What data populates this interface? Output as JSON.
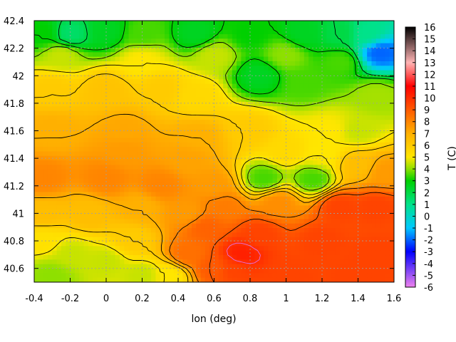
{
  "chart_data": {
    "type": "heatmap",
    "title": "",
    "xlabel": "lon (deg)",
    "ylabel": "",
    "colorbar_label": "T (C)",
    "xlim": [
      -0.4,
      1.6
    ],
    "ylim": [
      40.5,
      42.4
    ],
    "x_ticks": [
      "-0.4",
      "-0.2",
      "0",
      "0.2",
      "0.4",
      "0.6",
      "0.8",
      "1",
      "1.2",
      "1.4",
      "1.6"
    ],
    "y_ticks": [
      "40.6",
      "40.8",
      "41",
      "41.2",
      "41.4",
      "41.6",
      "41.8",
      "42",
      "42.2",
      "42.4"
    ],
    "colorbar_range": [
      -6,
      16
    ],
    "colorbar_ticks": [
      "-6",
      "-5",
      "-4",
      "-3",
      "-2",
      "-1",
      "0",
      "1",
      "2",
      "3",
      "4",
      "5",
      "6",
      "7",
      "8",
      "9",
      "10",
      "11",
      "12",
      "13",
      "14",
      "15",
      "16"
    ],
    "colormap": [
      {
        "v": -6,
        "c": "#ee82ee"
      },
      {
        "v": -3,
        "c": "#0000ff"
      },
      {
        "v": -1,
        "c": "#00c8ff"
      },
      {
        "v": 1,
        "c": "#00e28a"
      },
      {
        "v": 3,
        "c": "#00d000"
      },
      {
        "v": 4,
        "c": "#8ee000"
      },
      {
        "v": 5,
        "c": "#ffe600"
      },
      {
        "v": 7,
        "c": "#ffb000"
      },
      {
        "v": 9,
        "c": "#ff5a00"
      },
      {
        "v": 11,
        "c": "#ff0000"
      },
      {
        "v": 13,
        "c": "#ffb4b4"
      },
      {
        "v": 16,
        "c": "#000000"
      }
    ],
    "grid": true,
    "contour_lines": true,
    "field_anchors": [
      {
        "lon": -0.35,
        "lat": 42.3,
        "t": 3.0
      },
      {
        "lon": -0.2,
        "lat": 42.3,
        "t": 1.5
      },
      {
        "lon": 0.0,
        "lat": 42.32,
        "t": 2.5
      },
      {
        "lon": 0.2,
        "lat": 42.3,
        "t": 3.5
      },
      {
        "lon": 0.5,
        "lat": 42.3,
        "t": 2.5
      },
      {
        "lon": 0.8,
        "lat": 42.3,
        "t": 3.0
      },
      {
        "lon": 1.1,
        "lat": 42.3,
        "t": 2.5
      },
      {
        "lon": 1.3,
        "lat": 42.3,
        "t": 2.0
      },
      {
        "lon": 1.45,
        "lat": 42.3,
        "t": 1.0
      },
      {
        "lon": 1.52,
        "lat": 42.17,
        "t": -2.0
      },
      {
        "lon": -0.25,
        "lat": 42.15,
        "t": 4.5
      },
      {
        "lon": 0.2,
        "lat": 42.12,
        "t": 5.0
      },
      {
        "lon": 0.6,
        "lat": 42.15,
        "t": 4.5
      },
      {
        "lon": 1.0,
        "lat": 42.15,
        "t": 4.0
      },
      {
        "lon": 1.3,
        "lat": 42.1,
        "t": 3.5
      },
      {
        "lon": 0.85,
        "lat": 42.0,
        "t": 2.5
      },
      {
        "lon": 1.1,
        "lat": 41.95,
        "t": 3.5
      },
      {
        "lon": -0.3,
        "lat": 41.9,
        "t": 6.0
      },
      {
        "lon": 0.0,
        "lat": 41.9,
        "t": 6.3
      },
      {
        "lon": 0.3,
        "lat": 41.9,
        "t": 6.0
      },
      {
        "lon": 0.5,
        "lat": 41.85,
        "t": 5.5
      },
      {
        "lon": 1.5,
        "lat": 41.85,
        "t": 4.2
      },
      {
        "lon": 1.4,
        "lat": 41.6,
        "t": 4.5
      },
      {
        "lon": 1.25,
        "lat": 41.6,
        "t": 5.0
      },
      {
        "lon": -0.3,
        "lat": 41.6,
        "t": 7.0
      },
      {
        "lon": 0.1,
        "lat": 41.6,
        "t": 7.2
      },
      {
        "lon": 0.5,
        "lat": 41.55,
        "t": 7.0
      },
      {
        "lon": 0.8,
        "lat": 41.6,
        "t": 6.0
      },
      {
        "lon": 1.0,
        "lat": 41.45,
        "t": 5.5
      },
      {
        "lon": 0.1,
        "lat": 41.45,
        "t": 7.5
      },
      {
        "lon": 0.45,
        "lat": 41.4,
        "t": 7.3
      },
      {
        "lon": 1.2,
        "lat": 41.42,
        "t": 5.0
      },
      {
        "lon": 0.88,
        "lat": 41.25,
        "t": 3.5
      },
      {
        "lon": 1.15,
        "lat": 41.25,
        "t": 3.5
      },
      {
        "lon": 1.4,
        "lat": 41.35,
        "t": 6.5
      },
      {
        "lon": 1.55,
        "lat": 41.3,
        "t": 7.5
      },
      {
        "lon": -0.35,
        "lat": 41.25,
        "t": 8.0
      },
      {
        "lon": 0.0,
        "lat": 41.25,
        "t": 8.0
      },
      {
        "lon": 0.3,
        "lat": 41.2,
        "t": 8.0
      },
      {
        "lon": 0.6,
        "lat": 41.2,
        "t": 7.5
      },
      {
        "lon": -0.35,
        "lat": 41.0,
        "t": 6.5
      },
      {
        "lon": -0.1,
        "lat": 41.0,
        "t": 6.5
      },
      {
        "lon": 0.2,
        "lat": 41.05,
        "t": 7.0
      },
      {
        "lon": 0.45,
        "lat": 41.0,
        "t": 7.5
      },
      {
        "lon": 0.65,
        "lat": 41.05,
        "t": 8.2
      },
      {
        "lon": 0.95,
        "lat": 41.08,
        "t": 7.8
      },
      {
        "lon": 1.3,
        "lat": 41.05,
        "t": 9.5
      },
      {
        "lon": 1.5,
        "lat": 41.05,
        "t": 9.5
      },
      {
        "lon": 0.85,
        "lat": 40.85,
        "t": 9.5
      },
      {
        "lon": 1.2,
        "lat": 40.8,
        "t": 9.5
      },
      {
        "lon": 1.5,
        "lat": 40.7,
        "t": 9.5
      },
      {
        "lon": 0.7,
        "lat": 40.6,
        "t": 9.5
      },
      {
        "lon": 1.0,
        "lat": 40.55,
        "t": 9.5
      },
      {
        "lon": 1.4,
        "lat": 40.55,
        "t": 9.5
      },
      {
        "lon": 0.75,
        "lat": 40.7,
        "t": 10.3
      },
      {
        "lon": 0.55,
        "lat": 40.9,
        "t": 8.8
      },
      {
        "lon": 0.45,
        "lat": 40.7,
        "t": 8.5
      },
      {
        "lon": 0.6,
        "lat": 40.6,
        "t": 9.0
      },
      {
        "lon": 0.35,
        "lat": 40.55,
        "t": 5.0
      },
      {
        "lon": 0.15,
        "lat": 40.8,
        "t": 6.0
      },
      {
        "lon": 0.0,
        "lat": 40.65,
        "t": 4.5
      },
      {
        "lon": -0.2,
        "lat": 40.7,
        "t": 4.5
      },
      {
        "lon": -0.3,
        "lat": 40.55,
        "t": 4.0
      },
      {
        "lon": -0.35,
        "lat": 40.8,
        "t": 5.2
      },
      {
        "lon": 0.2,
        "lat": 40.55,
        "t": 4.5
      }
    ]
  }
}
